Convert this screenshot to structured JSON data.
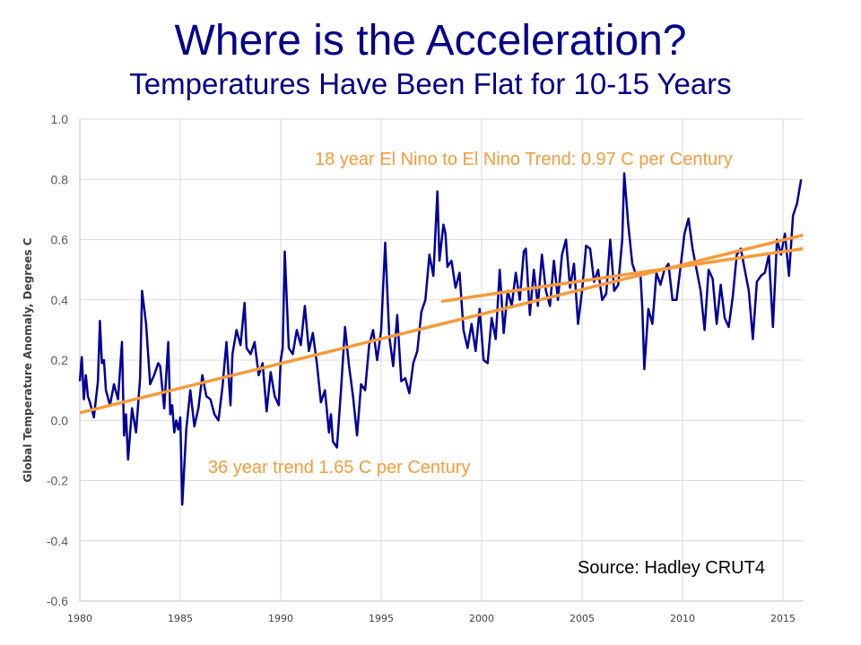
{
  "title": "Where is the Acceleration?",
  "subtitle": "Temperatures Have Been Flat for 10-15 Years",
  "colors": {
    "title": "#00008b",
    "series": "#000099",
    "trend": "#f79a3a",
    "grid": "#d9d9d9"
  },
  "chart_data": {
    "type": "line",
    "title": "Where is the Acceleration?",
    "subtitle": "Temperatures Have Been Flat for 10-15 Years",
    "xlabel": "",
    "ylabel": "Global Temperature Anomaly, Degrees C",
    "xlim": [
      1980,
      2016
    ],
    "ylim": [
      -0.6,
      1.0
    ],
    "grid": true,
    "x_ticks": [
      "1980",
      "1985",
      "1990",
      "1995",
      "2000",
      "2005",
      "2010",
      "2015"
    ],
    "y_ticks": [
      "1.0",
      "0.8",
      "0.6",
      "0.4",
      "0.2",
      "0.0",
      "-0.2",
      "-0.4",
      "-0.6"
    ],
    "series": [
      {
        "name": "Hadley CRUT4 monthly anomaly",
        "x": [
          1980.0,
          1980.1,
          1980.2,
          1980.3,
          1980.4,
          1980.5,
          1980.7,
          1980.9,
          1981.0,
          1981.1,
          1981.2,
          1981.3,
          1981.5,
          1981.7,
          1981.9,
          1982.1,
          1982.2,
          1982.3,
          1982.4,
          1982.6,
          1982.8,
          1983.0,
          1983.1,
          1983.3,
          1983.5,
          1983.7,
          1983.9,
          1984.0,
          1984.2,
          1984.4,
          1984.5,
          1984.6,
          1984.7,
          1984.8,
          1984.9,
          1985.0,
          1985.1,
          1985.3,
          1985.5,
          1985.7,
          1985.9,
          1986.1,
          1986.3,
          1986.5,
          1986.7,
          1986.9,
          1987.1,
          1987.3,
          1987.5,
          1987.6,
          1987.8,
          1988.0,
          1988.2,
          1988.3,
          1988.5,
          1988.7,
          1988.9,
          1989.1,
          1989.3,
          1989.5,
          1989.7,
          1989.9,
          1990.0,
          1990.1,
          1990.2,
          1990.4,
          1990.6,
          1990.8,
          1991.0,
          1991.2,
          1991.4,
          1991.6,
          1991.8,
          1992.0,
          1992.2,
          1992.4,
          1992.5,
          1992.6,
          1992.8,
          1993.0,
          1993.2,
          1993.4,
          1993.6,
          1993.8,
          1994.0,
          1994.2,
          1994.4,
          1994.6,
          1994.8,
          1995.0,
          1995.2,
          1995.4,
          1995.6,
          1995.8,
          1996.0,
          1996.2,
          1996.4,
          1996.6,
          1996.8,
          1997.0,
          1997.2,
          1997.4,
          1997.6,
          1997.8,
          1997.9,
          1998.1,
          1998.2,
          1998.3,
          1998.5,
          1998.7,
          1998.9,
          1999.1,
          1999.3,
          1999.5,
          1999.7,
          1999.9,
          2000.1,
          2000.3,
          2000.5,
          2000.7,
          2000.9,
          2001.1,
          2001.3,
          2001.5,
          2001.7,
          2001.9,
          2002.1,
          2002.2,
          2002.4,
          2002.6,
          2002.8,
          2003.0,
          2003.2,
          2003.4,
          2003.6,
          2003.8,
          2004.0,
          2004.2,
          2004.4,
          2004.6,
          2004.8,
          2005.0,
          2005.2,
          2005.4,
          2005.6,
          2005.8,
          2006.0,
          2006.2,
          2006.4,
          2006.6,
          2006.8,
          2007.0,
          2007.1,
          2007.3,
          2007.5,
          2007.7,
          2007.9,
          2008.0,
          2008.1,
          2008.3,
          2008.5,
          2008.7,
          2008.9,
          2009.1,
          2009.3,
          2009.5,
          2009.7,
          2009.9,
          2010.1,
          2010.3,
          2010.5,
          2010.7,
          2010.9,
          2011.1,
          2011.3,
          2011.5,
          2011.7,
          2011.9,
          2012.1,
          2012.3,
          2012.5,
          2012.7,
          2012.9,
          2013.1,
          2013.3,
          2013.5,
          2013.7,
          2013.9,
          2014.1,
          2014.3,
          2014.5,
          2014.7,
          2014.9,
          2015.1,
          2015.3,
          2015.5,
          2015.7,
          2015.9
        ],
        "y": [
          0.13,
          0.21,
          0.07,
          0.15,
          0.08,
          0.06,
          0.01,
          0.13,
          0.33,
          0.19,
          0.2,
          0.1,
          0.05,
          0.12,
          0.07,
          0.26,
          -0.05,
          0.02,
          -0.13,
          0.04,
          -0.04,
          0.14,
          0.43,
          0.32,
          0.12,
          0.15,
          0.19,
          0.18,
          0.04,
          0.26,
          0.02,
          0.05,
          -0.04,
          0.0,
          -0.03,
          0.01,
          -0.28,
          -0.03,
          0.1,
          -0.02,
          0.04,
          0.15,
          0.08,
          0.07,
          0.02,
          0.0,
          0.11,
          0.26,
          0.05,
          0.22,
          0.3,
          0.25,
          0.39,
          0.24,
          0.22,
          0.26,
          0.15,
          0.19,
          0.03,
          0.16,
          0.08,
          0.05,
          0.2,
          0.24,
          0.56,
          0.24,
          0.22,
          0.3,
          0.25,
          0.38,
          0.23,
          0.29,
          0.19,
          0.06,
          0.1,
          -0.04,
          0.02,
          -0.07,
          -0.09,
          0.1,
          0.31,
          0.18,
          0.08,
          -0.05,
          0.12,
          0.1,
          0.25,
          0.3,
          0.2,
          0.3,
          0.59,
          0.28,
          0.18,
          0.35,
          0.13,
          0.14,
          0.09,
          0.19,
          0.23,
          0.36,
          0.4,
          0.55,
          0.48,
          0.76,
          0.53,
          0.65,
          0.62,
          0.51,
          0.53,
          0.44,
          0.49,
          0.3,
          0.24,
          0.32,
          0.23,
          0.37,
          0.2,
          0.19,
          0.34,
          0.27,
          0.5,
          0.29,
          0.43,
          0.38,
          0.49,
          0.4,
          0.56,
          0.57,
          0.35,
          0.5,
          0.38,
          0.55,
          0.43,
          0.38,
          0.53,
          0.4,
          0.55,
          0.6,
          0.44,
          0.52,
          0.32,
          0.43,
          0.58,
          0.57,
          0.46,
          0.5,
          0.4,
          0.42,
          0.6,
          0.43,
          0.45,
          0.6,
          0.82,
          0.65,
          0.52,
          0.48,
          0.49,
          0.37,
          0.17,
          0.37,
          0.32,
          0.49,
          0.45,
          0.5,
          0.52,
          0.4,
          0.4,
          0.51,
          0.62,
          0.67,
          0.57,
          0.5,
          0.43,
          0.3,
          0.5,
          0.47,
          0.32,
          0.45,
          0.34,
          0.31,
          0.41,
          0.55,
          0.57,
          0.5,
          0.43,
          0.27,
          0.46,
          0.48,
          0.49,
          0.55,
          0.31,
          0.6,
          0.55,
          0.62,
          0.48,
          0.68,
          0.72,
          0.8
        ]
      }
    ],
    "trend_lines": [
      {
        "name": "36 year trend",
        "label": "36 year trend 1.65 C per Century",
        "x": [
          1980,
          2016
        ],
        "y": [
          0.025,
          0.615
        ]
      },
      {
        "name": "18 year El Nino to El Nino trend",
        "label": "18 year El Nino to El Nino Trend:  0.97 C per Century",
        "x": [
          1998,
          2016
        ],
        "y": [
          0.395,
          0.57
        ]
      }
    ],
    "annotations": [
      "18 year El Nino to El Nino Trend:  0.97 C per Century",
      "36 year trend 1.65 C per Century",
      "Source:  Hadley CRUT4"
    ]
  }
}
